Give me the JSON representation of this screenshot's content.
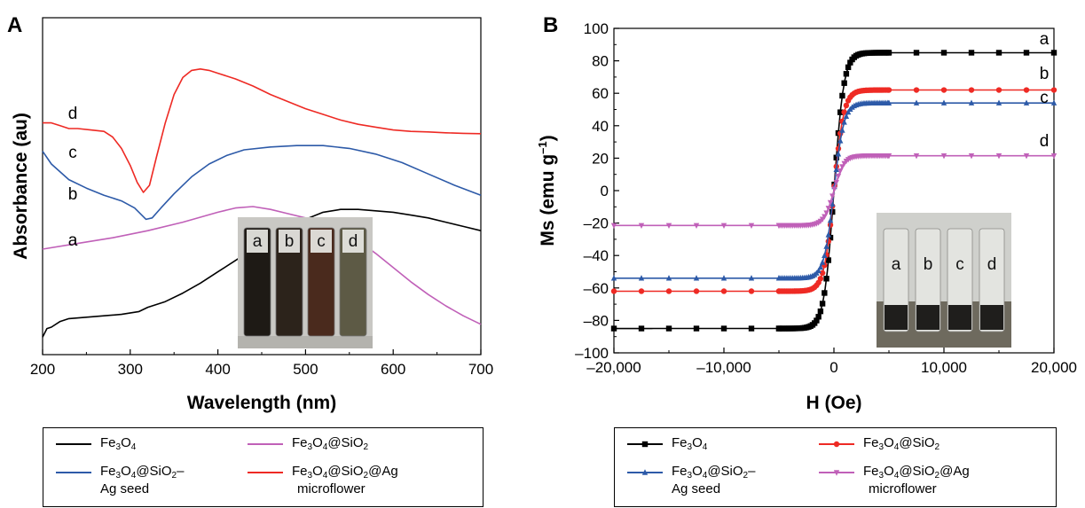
{
  "panels": [
    {
      "letter": "A",
      "chart_data": {
        "type": "line",
        "xlabel": "Wavelength (nm)",
        "ylabel": "Absorbance (au)",
        "xlim": [
          200,
          700
        ],
        "xticks": [
          "200",
          "300",
          "400",
          "500",
          "600",
          "700"
        ],
        "y_ticks_shown": false,
        "grid": false,
        "series": [
          {
            "name": "Fe3O4",
            "color": "#000000",
            "label": "a",
            "x": [
              200,
              205,
              210,
              220,
              230,
              250,
              270,
              290,
              310,
              320,
              340,
              360,
              380,
              400,
              420,
              440,
              460,
              480,
              500,
              520,
              540,
              560,
              580,
              600,
              620,
              640,
              660,
              680,
              700
            ],
            "y": [
              0.265,
              0.295,
              0.3,
              0.32,
              0.33,
              0.335,
              0.34,
              0.345,
              0.355,
              0.37,
              0.39,
              0.42,
              0.455,
              0.495,
              0.535,
              0.575,
              0.615,
              0.65,
              0.68,
              0.705,
              0.715,
              0.715,
              0.71,
              0.705,
              0.695,
              0.685,
              0.67,
              0.655,
              0.64
            ]
          },
          {
            "name": "Fe3O4@SiO2",
            "color": "#c060b8",
            "label": "b",
            "x": [
              200,
              240,
              280,
              320,
              360,
              400,
              420,
              440,
              460,
              480,
              500,
              520,
              540,
              560,
              580,
              600,
              620,
              640,
              660,
              680,
              700
            ],
            "y": [
              0.575,
              0.595,
              0.615,
              0.64,
              0.67,
              0.705,
              0.72,
              0.725,
              0.715,
              0.7,
              0.685,
              0.665,
              0.64,
              0.605,
              0.56,
              0.51,
              0.46,
              0.415,
              0.375,
              0.34,
              0.31
            ]
          },
          {
            "name": "Fe3O4@SiO2–Ag seed",
            "color": "#2d5aa8",
            "label": "c",
            "x": [
              200,
              210,
              230,
              250,
              270,
              290,
              305,
              318,
              325,
              335,
              350,
              370,
              390,
              410,
              430,
              460,
              490,
              520,
              550,
              580,
              610,
              640,
              670,
              700
            ],
            "y": [
              0.92,
              0.875,
              0.82,
              0.79,
              0.765,
              0.745,
              0.72,
              0.68,
              0.685,
              0.72,
              0.77,
              0.83,
              0.875,
              0.905,
              0.925,
              0.935,
              0.94,
              0.94,
              0.93,
              0.91,
              0.88,
              0.84,
              0.8,
              0.765
            ]
          },
          {
            "name": "Fe3O4@SiO2@Ag microflower",
            "color": "#ee2a24",
            "label": "d",
            "x": [
              200,
              210,
              220,
              230,
              240,
              255,
              270,
              280,
              290,
              300,
              308,
              315,
              322,
              330,
              340,
              350,
              360,
              370,
              380,
              390,
              400,
              420,
              440,
              460,
              480,
              500,
              520,
              540,
              560,
              580,
              600,
              620,
              640,
              660,
              680,
              700
            ],
            "y": [
              1.02,
              1.02,
              1.01,
              1.0,
              1.0,
              0.995,
              0.99,
              0.97,
              0.93,
              0.87,
              0.81,
              0.775,
              0.8,
              0.9,
              1.02,
              1.12,
              1.18,
              1.205,
              1.21,
              1.205,
              1.195,
              1.175,
              1.15,
              1.12,
              1.095,
              1.07,
              1.05,
              1.03,
              1.015,
              1.005,
              0.995,
              0.99,
              0.988,
              0.985,
              0.983,
              0.982
            ]
          }
        ],
        "inset_photo": {
          "vials": [
            "a",
            "b",
            "c",
            "d"
          ],
          "vial_colors": [
            "#1e1a15",
            "#2c231b",
            "#4a2a1d",
            "#5d5a45"
          ]
        }
      },
      "legend": [
        {
          "main": "Fe",
          "s1": "3",
          "mid": "O",
          "s2": "4",
          "tail": "",
          "line2": ""
        },
        {
          "main": "Fe",
          "s1": "3",
          "mid": "O",
          "s2": "4",
          "tail": "@SiO",
          "s3": "2",
          "line2": ""
        },
        {
          "main": "Fe",
          "s1": "3",
          "mid": "O",
          "s2": "4",
          "tail": "@SiO",
          "s3": "2",
          "tail2": "–",
          "line2": "Ag seed"
        },
        {
          "main": "Fe",
          "s1": "3",
          "mid": "O",
          "s2": "4",
          "tail": "@SiO",
          "s3": "2",
          "tail2": "@Ag",
          "line2": "microflower"
        }
      ]
    },
    {
      "letter": "B",
      "chart_data": {
        "type": "line",
        "xlabel": "H (Oe)",
        "ylabel": "Ms (emu g",
        "ylabel_sup": "–1",
        "ylabel_end": ")",
        "xlim": [
          -20000,
          20000
        ],
        "ylim": [
          -100,
          100
        ],
        "xticks": [
          "–20,000",
          "–10,000",
          "0",
          "10,000",
          "20,000"
        ],
        "yticks": [
          "100",
          "80",
          "60",
          "40",
          "20",
          "0",
          "–20",
          "–40",
          "–60",
          "–80",
          "–100"
        ],
        "grid": false,
        "series": [
          {
            "name": "Fe3O4",
            "color": "#000000",
            "label": "a",
            "marker": "square",
            "ms": 85
          },
          {
            "name": "Fe3O4@SiO2",
            "color": "#ee2a24",
            "label": "b",
            "marker": "circle",
            "ms": 62
          },
          {
            "name": "Fe3O4@SiO2–Ag seed",
            "color": "#2d5aa8",
            "label": "c",
            "marker": "triangle-up",
            "ms": 54
          },
          {
            "name": "Fe3O4@SiO2@Ag microflower",
            "color": "#c060b8",
            "label": "d",
            "marker": "triangle-down",
            "ms": 21.5
          }
        ],
        "inset_photo": {
          "vials": [
            "a",
            "b",
            "c",
            "d"
          ]
        }
      },
      "legend": [
        {
          "main": "Fe",
          "s1": "3",
          "mid": "O",
          "s2": "4",
          "tail": "",
          "line2": ""
        },
        {
          "main": "Fe",
          "s1": "3",
          "mid": "O",
          "s2": "4",
          "tail": "@SiO",
          "s3": "2",
          "line2": ""
        },
        {
          "main": "Fe",
          "s1": "3",
          "mid": "O",
          "s2": "4",
          "tail": "@SiO",
          "s3": "2",
          "tail2": "–",
          "line2": "Ag seed"
        },
        {
          "main": "Fe",
          "s1": "3",
          "mid": "O",
          "s2": "4",
          "tail": "@SiO",
          "s3": "2",
          "tail2": "@Ag",
          "line2": "microflower"
        }
      ]
    }
  ]
}
